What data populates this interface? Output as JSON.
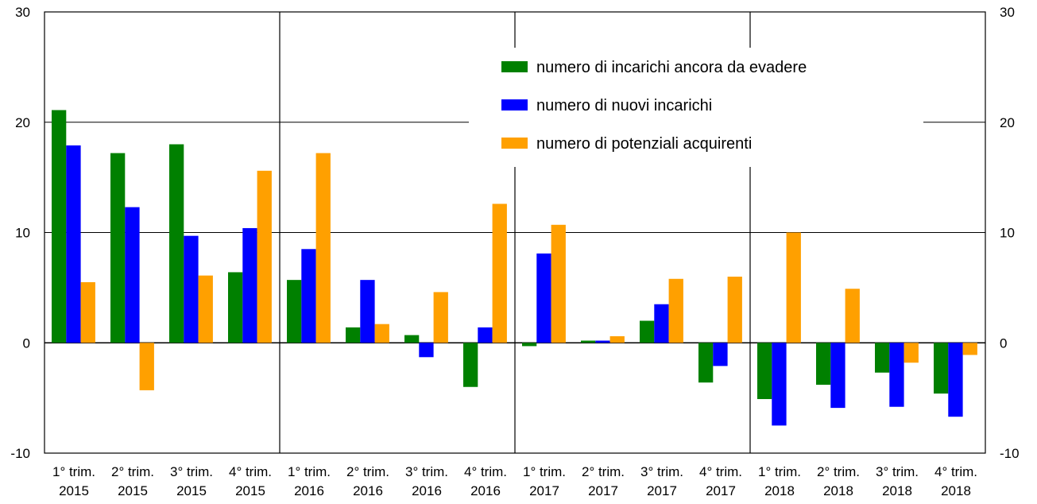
{
  "chart_data": {
    "type": "bar",
    "categories": [
      [
        "1° trim.",
        "2015"
      ],
      [
        "2° trim.",
        "2015"
      ],
      [
        "3° trim.",
        "2015"
      ],
      [
        "4° trim.",
        "2015"
      ],
      [
        "1° trim.",
        "2016"
      ],
      [
        "2° trim.",
        "2016"
      ],
      [
        "3° trim.",
        "2016"
      ],
      [
        "4° trim.",
        "2016"
      ],
      [
        "1° trim.",
        "2017"
      ],
      [
        "2° trim.",
        "2017"
      ],
      [
        "3° trim.",
        "2017"
      ],
      [
        "4° trim.",
        "2017"
      ],
      [
        "1° trim.",
        "2018"
      ],
      [
        "2° trim.",
        "2018"
      ],
      [
        "3° trim.",
        "2018"
      ],
      [
        "4° trim.",
        "2018"
      ]
    ],
    "series": [
      {
        "name": "numero di incarichi ancora da evadere",
        "color": "#008000",
        "values": [
          21.1,
          17.2,
          18.0,
          6.4,
          5.7,
          1.4,
          0.7,
          -4.0,
          -0.3,
          0.2,
          2.0,
          -3.6,
          -5.1,
          -3.8,
          -2.7,
          -4.6
        ]
      },
      {
        "name": "numero di nuovi incarichi",
        "color": "#0000ff",
        "values": [
          17.9,
          12.3,
          9.7,
          10.4,
          8.5,
          5.7,
          -1.3,
          1.4,
          8.1,
          0.2,
          3.5,
          -2.1,
          -7.5,
          -5.9,
          -5.8,
          -6.7
        ]
      },
      {
        "name": "numero di potenziali acquirenti",
        "color": "#ffa000",
        "values": [
          5.5,
          -4.3,
          6.1,
          15.6,
          17.2,
          1.7,
          4.6,
          12.6,
          10.7,
          0.6,
          5.8,
          6.0,
          10.0,
          4.9,
          -1.8,
          -1.1
        ]
      }
    ],
    "ylim": [
      -10,
      30
    ],
    "yticks": [
      "-10",
      "0",
      "10",
      "20",
      "30"
    ],
    "ytick_values": [
      -10,
      0,
      10,
      20,
      30
    ],
    "grid": true,
    "legend_position": "top-right"
  }
}
